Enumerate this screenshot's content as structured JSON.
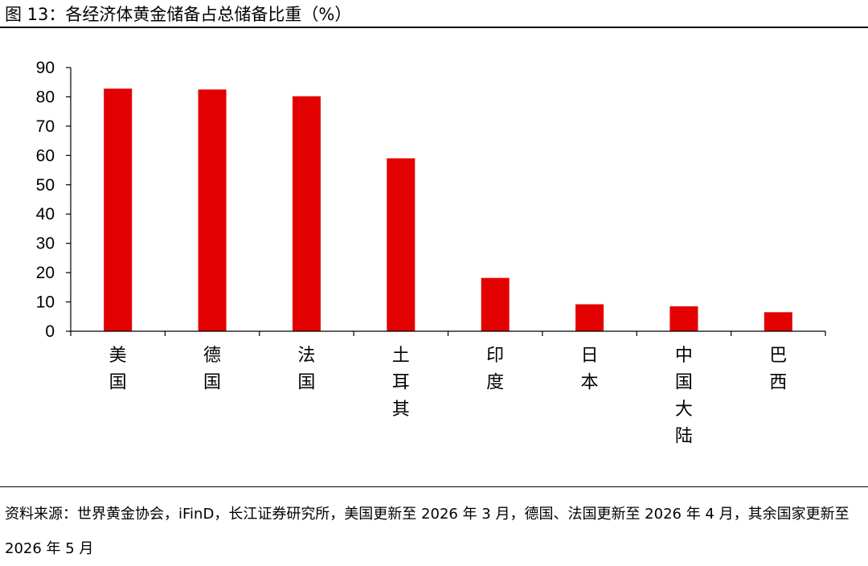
{
  "title": "图 13：各经济体黄金储备占总储备比重（%）",
  "source": "资料来源：世界黄金协会，iFinD，长江证券研究所，美国更新至 2026 年 3 月，德国、法国更新至 2026 年 4 月，其余国家更新至 2026 年 5 月",
  "colors": {
    "bar": "#e30000",
    "axis": "#000000"
  },
  "chart_data": {
    "type": "bar",
    "title": "图 13：各经济体黄金储备占总储备比重（%）",
    "xlabel": "",
    "ylabel": "",
    "categories": [
      "美国",
      "德国",
      "法国",
      "土耳其",
      "印度",
      "日本",
      "中国大陆",
      "巴西"
    ],
    "values": [
      82.8,
      82.5,
      80.2,
      59.0,
      18.2,
      9.2,
      8.5,
      6.5
    ],
    "ylim": [
      0,
      90
    ],
    "yticks": [
      0,
      10,
      20,
      30,
      40,
      50,
      60,
      70,
      80,
      90
    ],
    "grid": false,
    "legend": "none"
  }
}
